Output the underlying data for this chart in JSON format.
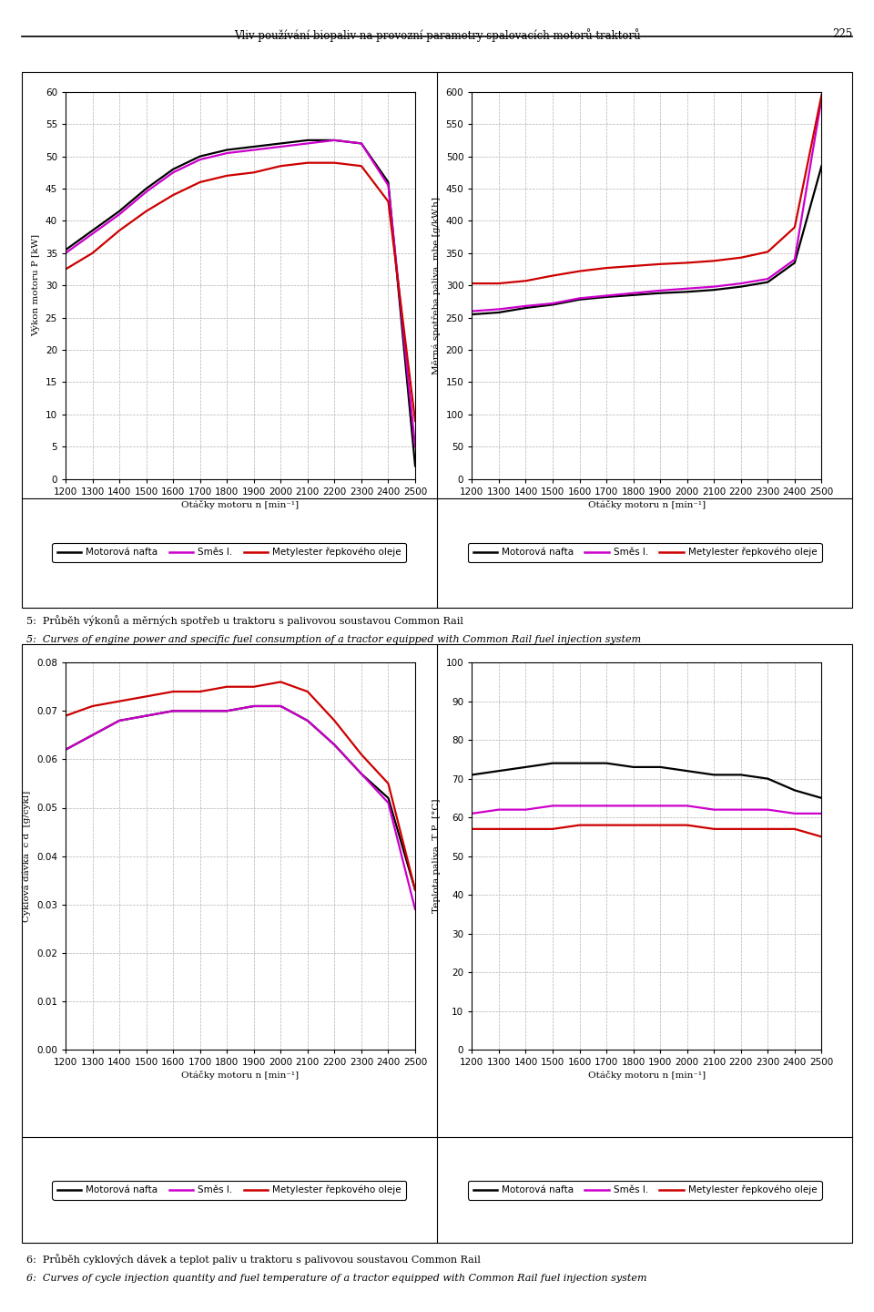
{
  "title": "Vliv používání biopaliv na provozní parametry spalovacích motorů traktorů",
  "page_number": "225",
  "rpm": [
    1200,
    1300,
    1400,
    1500,
    1600,
    1700,
    1800,
    1900,
    2000,
    2100,
    2200,
    2300,
    2400,
    2500
  ],
  "power_diesel": [
    35.5,
    38.5,
    41.5,
    45.0,
    48.0,
    50.0,
    51.0,
    51.5,
    52.0,
    52.5,
    52.5,
    52.0,
    46.0,
    2.0
  ],
  "power_blend": [
    35.0,
    38.0,
    41.0,
    44.5,
    47.5,
    49.5,
    50.5,
    51.0,
    51.5,
    52.0,
    52.5,
    52.0,
    45.5,
    5.0
  ],
  "power_ester": [
    32.5,
    35.0,
    38.5,
    41.5,
    44.0,
    46.0,
    47.0,
    47.5,
    48.5,
    49.0,
    49.0,
    48.5,
    43.0,
    9.0
  ],
  "sfc_diesel": [
    255,
    258,
    265,
    270,
    278,
    282,
    285,
    288,
    290,
    293,
    298,
    305,
    335,
    485
  ],
  "sfc_blend": [
    260,
    263,
    268,
    272,
    280,
    284,
    288,
    292,
    295,
    298,
    303,
    310,
    340,
    590
  ],
  "sfc_ester": [
    303,
    303,
    307,
    315,
    322,
    327,
    330,
    333,
    335,
    338,
    343,
    352,
    390,
    595
  ],
  "cyclic_diesel": [
    0.062,
    0.065,
    0.068,
    0.069,
    0.07,
    0.07,
    0.07,
    0.071,
    0.071,
    0.068,
    0.063,
    0.057,
    0.052,
    0.033
  ],
  "cyclic_blend": [
    0.062,
    0.065,
    0.068,
    0.069,
    0.07,
    0.07,
    0.07,
    0.071,
    0.071,
    0.068,
    0.063,
    0.057,
    0.051,
    0.029
  ],
  "cyclic_ester": [
    0.069,
    0.071,
    0.072,
    0.073,
    0.074,
    0.074,
    0.075,
    0.075,
    0.076,
    0.074,
    0.068,
    0.061,
    0.055,
    0.033
  ],
  "temp_diesel": [
    71,
    72,
    73,
    74,
    74,
    74,
    73,
    73,
    72,
    71,
    71,
    70,
    67,
    65
  ],
  "temp_blend": [
    61,
    62,
    62,
    63,
    63,
    63,
    63,
    63,
    63,
    62,
    62,
    62,
    61,
    61
  ],
  "temp_ester": [
    57,
    57,
    57,
    57,
    58,
    58,
    58,
    58,
    58,
    57,
    57,
    57,
    57,
    55
  ],
  "colors": {
    "diesel": "#000000",
    "blend": "#cc00cc",
    "ester": "#cc0000"
  },
  "fig5_caption_cz": "5:  Průběh výkonů a měrných spotřeb u traktoru s palivovou soustavou Common Rail",
  "fig5_caption_en": "5:  Curves of engine power and specific fuel consumption of a tractor equipped with Common Rail fuel injection system",
  "fig6_caption_cz": "6:  Průběh cyklových dávek a teplot paliv u traktoru s palivovou soustavou Common Rail",
  "fig6_caption_en": "6:  Curves of cycle injection quantity and fuel temperature of a tractor equipped with Common Rail fuel injection system",
  "legend_diesel": "Motorová nafta",
  "legend_blend": "Směs I.",
  "legend_ester": "Metylester řepkového oleje",
  "power_ylabel": "Výkon motoru P [kW]",
  "power_ylim": [
    0,
    60
  ],
  "power_yticks": [
    0,
    5,
    10,
    15,
    20,
    25,
    30,
    35,
    40,
    45,
    50,
    55,
    60
  ],
  "sfc_ylabel": "Měrná spotřeba paliva  mbe [g/kW.h]",
  "sfc_ylim": [
    0,
    600
  ],
  "sfc_yticks": [
    0,
    50,
    100,
    150,
    200,
    250,
    300,
    350,
    400,
    450,
    500,
    550,
    600
  ],
  "cyclic_ylabel": "Cyklová dávka  c d  [g/cykl]",
  "cyclic_ylim": [
    0.0,
    0.08
  ],
  "cyclic_yticks": [
    0.0,
    0.01,
    0.02,
    0.03,
    0.04,
    0.05,
    0.06,
    0.07,
    0.08
  ],
  "temp_ylabel": "Teplota paliva  T P  [°C]",
  "temp_ylim": [
    0,
    100
  ],
  "temp_yticks": [
    0,
    10,
    20,
    30,
    40,
    50,
    60,
    70,
    80,
    90,
    100
  ],
  "xlabel": "Otáčky motoru n [min⁻¹]",
  "xticks": [
    1200,
    1300,
    1400,
    1500,
    1600,
    1700,
    1800,
    1900,
    2000,
    2100,
    2200,
    2300,
    2400,
    2500
  ]
}
